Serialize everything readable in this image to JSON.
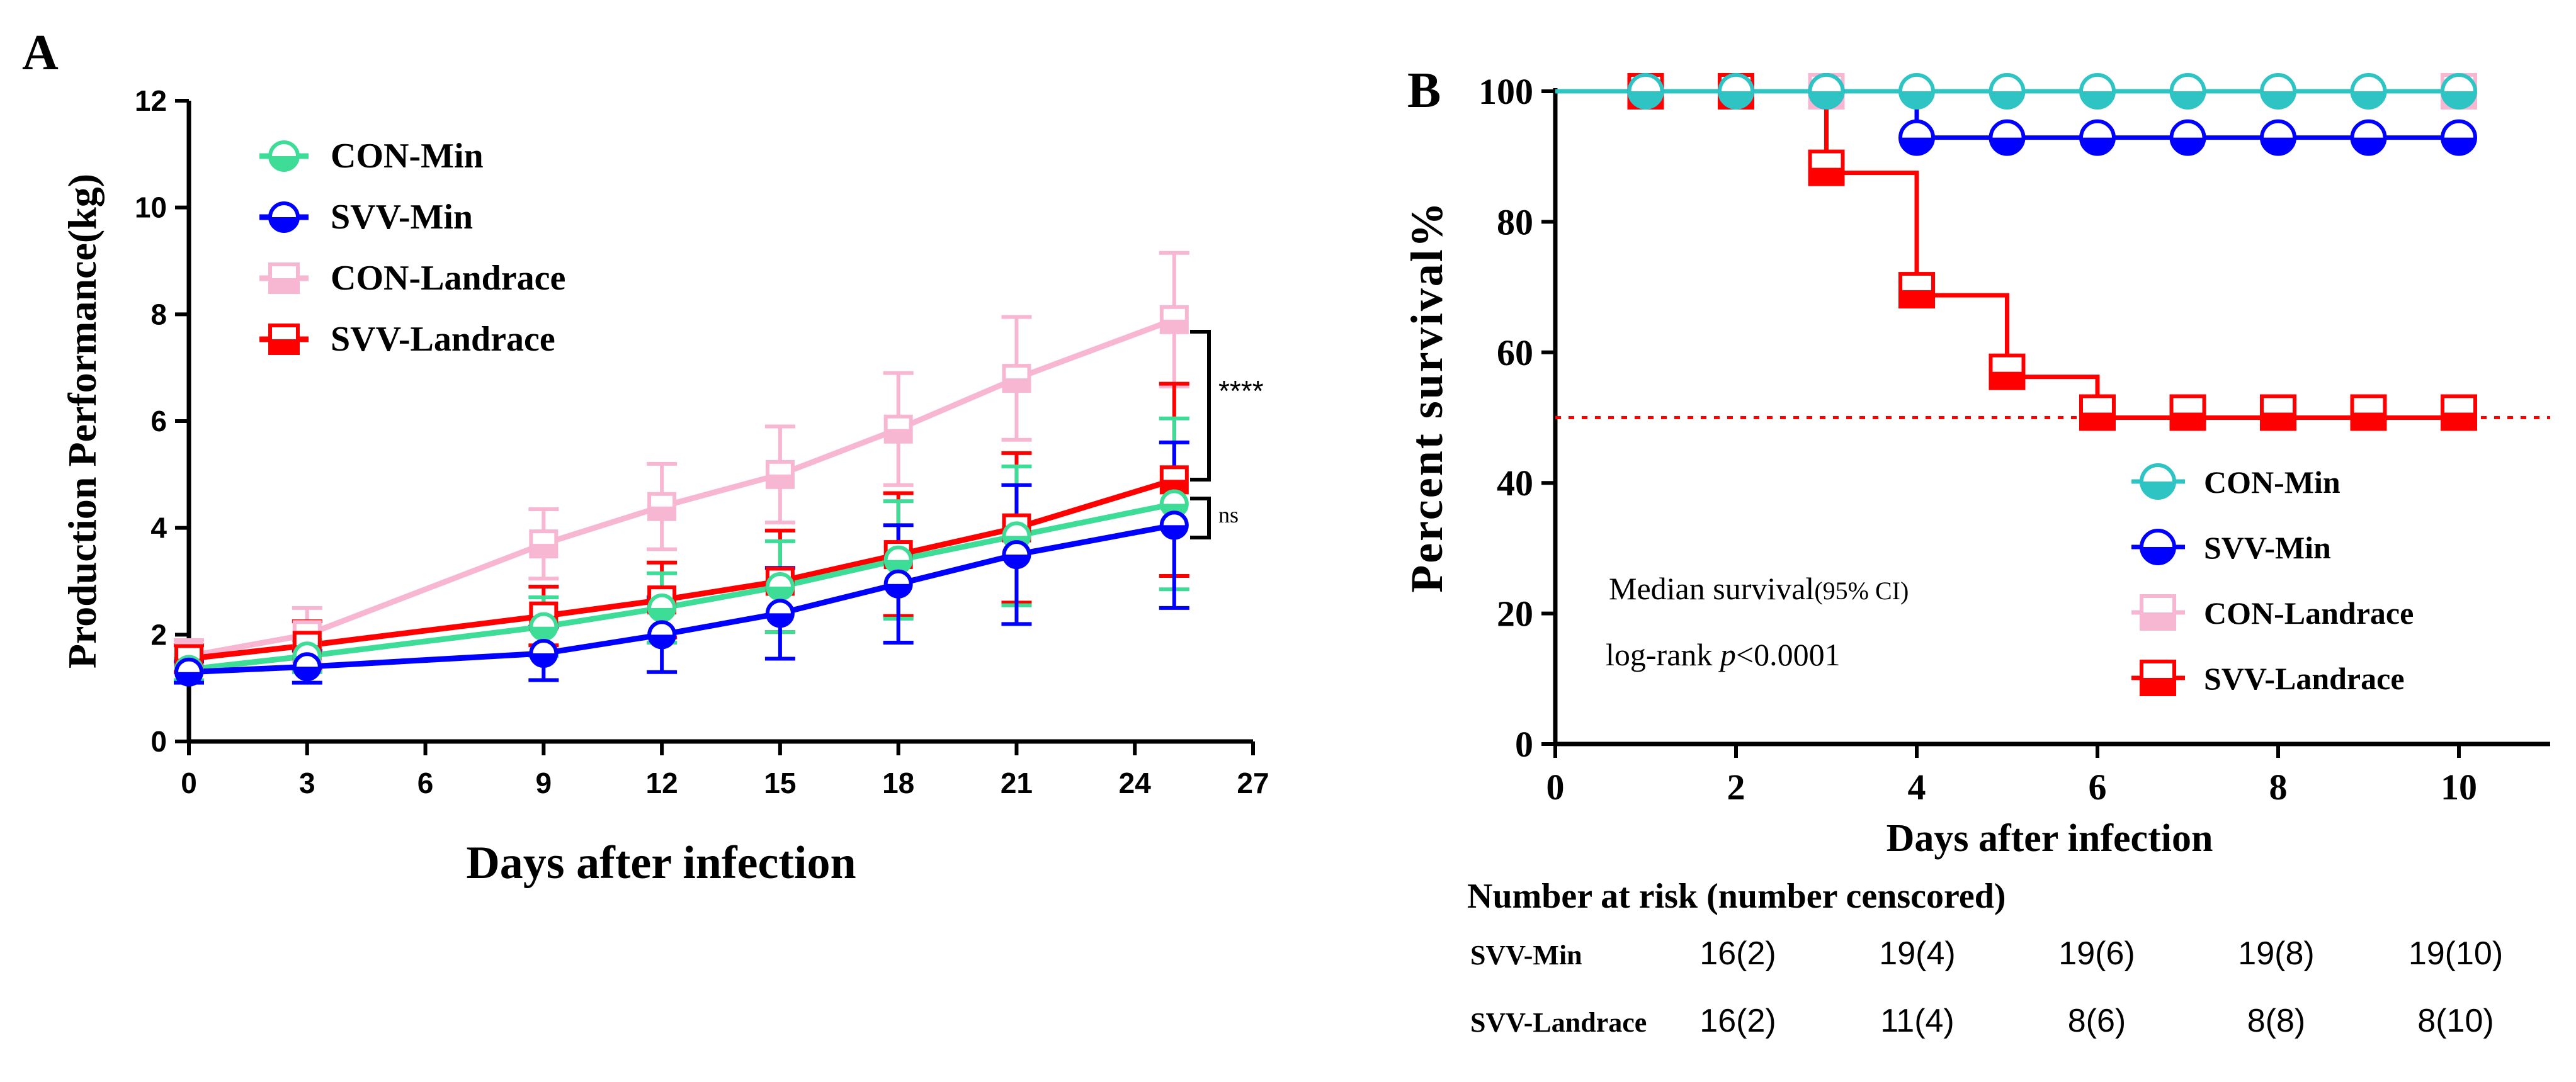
{
  "chart_data": [
    {
      "panel": "A",
      "type": "line",
      "xlabel": "Days after infection",
      "ylabel": "Production Performance(kg)",
      "xlim": [
        0,
        27
      ],
      "ylim": [
        0,
        12
      ],
      "x_ticks": [
        0,
        3,
        6,
        9,
        12,
        15,
        18,
        21,
        24,
        27
      ],
      "y_ticks": [
        0,
        2,
        4,
        6,
        8,
        10,
        12
      ],
      "x": [
        0,
        3,
        9,
        12,
        15,
        18,
        21,
        25
      ],
      "series": [
        {
          "name": "CON-Landrace",
          "color": "#f7b6d2",
          "marker": "square-half",
          "values": [
            1.6,
            2.0,
            3.7,
            4.4,
            5.0,
            5.85,
            6.8,
            7.9
          ],
          "error": [
            0.3,
            0.5,
            0.65,
            0.8,
            0.9,
            1.05,
            1.15,
            1.25
          ]
        },
        {
          "name": "SVV-Landrace",
          "color": "#ff0000",
          "marker": "square-half",
          "values": [
            1.55,
            1.8,
            2.35,
            2.65,
            3.0,
            3.5,
            4.0,
            4.9
          ],
          "error": [
            0.25,
            0.45,
            0.55,
            0.7,
            0.95,
            1.15,
            1.4,
            1.8
          ]
        },
        {
          "name": "CON-Min",
          "color": "#3ddc97",
          "marker": "circle-half",
          "values": [
            1.35,
            1.6,
            2.15,
            2.5,
            2.9,
            3.4,
            3.85,
            4.45
          ],
          "error": [
            0.2,
            0.3,
            0.55,
            0.65,
            0.85,
            1.1,
            1.3,
            1.6
          ]
        },
        {
          "name": "SVV-Min",
          "color": "#0000ff",
          "marker": "circle-half",
          "values": [
            1.3,
            1.4,
            1.65,
            2.0,
            2.4,
            2.95,
            3.5,
            4.05
          ],
          "error": [
            0.2,
            0.3,
            0.5,
            0.7,
            0.85,
            1.1,
            1.3,
            1.55
          ]
        }
      ],
      "legend": [
        "CON-Min",
        "SVV-Min",
        "CON-Landrace",
        "SVV-Landrace"
      ],
      "annotations": [
        "****",
        "ns"
      ]
    },
    {
      "panel": "B",
      "type": "line",
      "subtype": "kaplan-meier",
      "xlabel": "Days after infection",
      "ylabel": "Percent survival%",
      "xlim": [
        0,
        11
      ],
      "ylim": [
        0,
        100
      ],
      "x_ticks": [
        0,
        2,
        4,
        6,
        8,
        10
      ],
      "y_ticks": [
        0,
        20,
        40,
        60,
        80,
        100
      ],
      "reference_line": 50,
      "series": [
        {
          "name": "CON-Min",
          "color": "#2ec4c4",
          "marker": "circle-half",
          "steps": [
            [
              0,
              100
            ],
            [
              10,
              100
            ]
          ],
          "markers_x": [
            1,
            2,
            3,
            4,
            5,
            6,
            7,
            8,
            9,
            10
          ],
          "markers_y": [
            100,
            100,
            100,
            100,
            100,
            100,
            100,
            100,
            100,
            100
          ]
        },
        {
          "name": "SVV-Min",
          "color": "#0000ff",
          "marker": "circle-half",
          "steps": [
            [
              0,
              100
            ],
            [
              4,
              100
            ],
            [
              4,
              92.9
            ],
            [
              10,
              92.9
            ]
          ],
          "markers_x": [
            1,
            2,
            3,
            4,
            5,
            6,
            7,
            8,
            9,
            10
          ],
          "markers_y": [
            100,
            100,
            100,
            92.9,
            92.9,
            92.9,
            92.9,
            92.9,
            92.9,
            92.9
          ]
        },
        {
          "name": "CON-Landrace",
          "color": "#f7b6d2",
          "marker": "square-half",
          "steps": [
            [
              0,
              100
            ],
            [
              10,
              100
            ]
          ],
          "markers_x": [
            1,
            2,
            3,
            10
          ],
          "markers_y": [
            100,
            100,
            100,
            100
          ]
        },
        {
          "name": "SVV-Landrace",
          "color": "#ff0000",
          "marker": "square-half",
          "steps": [
            [
              0,
              100
            ],
            [
              3,
              100
            ],
            [
              3,
              87.5
            ],
            [
              4,
              87.5
            ],
            [
              4,
              68.75
            ],
            [
              5,
              68.75
            ],
            [
              5,
              56.25
            ],
            [
              6,
              56.25
            ],
            [
              6,
              50
            ],
            [
              10,
              50
            ]
          ],
          "markers_x": [
            1,
            2,
            3,
            4,
            5,
            6,
            7,
            8,
            9,
            10
          ],
          "markers_y": [
            100,
            100,
            87.5,
            68.75,
            56.25,
            50,
            50,
            50,
            50,
            50
          ]
        }
      ],
      "legend": [
        "CON-Min",
        "SVV-Min",
        "CON-Landrace",
        "SVV-Landrace"
      ]
    }
  ],
  "panel_a": {
    "label": "A"
  },
  "panel_b": {
    "label": "B",
    "median_text": "Median survival",
    "median_ci": "(95% CI)",
    "logrank_prefix": "log-rank ",
    "logrank_p": "p",
    "logrank_value": "<0.0001"
  },
  "risk_table": {
    "title": "Number at risk (number censcored)",
    "rows": [
      {
        "label": "SVV-Min",
        "values": [
          "16(2)",
          "19(4)",
          "19(6)",
          "19(8)",
          "19(10)"
        ]
      },
      {
        "label": "SVV-Landrace",
        "values": [
          "16(2)",
          "11(4)",
          "8(6)",
          "8(8)",
          "8(10)"
        ]
      }
    ]
  }
}
